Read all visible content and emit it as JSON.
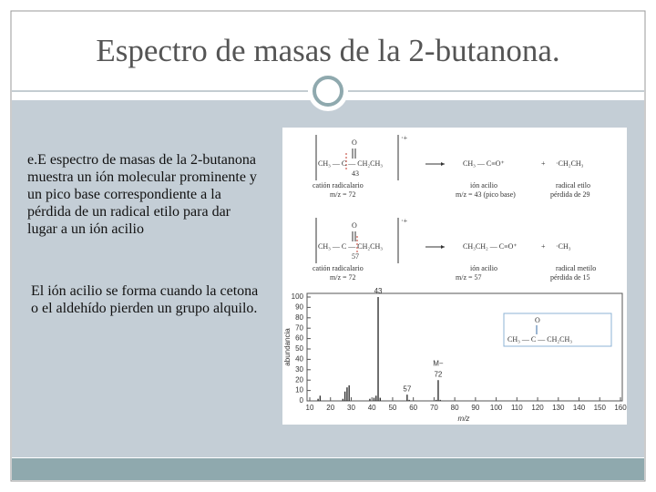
{
  "slide": {
    "title": "Espectro de masas de la 2-butanona.",
    "paragraphs": [
      "e.E espectro de masas de la 2-butanona muestra un ión molecular prominente y un pico base correspondiente a la pérdida de un radical etilo para dar lugar a un ión acilio",
      "El ión acilio se forma cuando la cetona o el aldehído pierden un grupo alquilo."
    ],
    "scheme": {
      "rows": [
        {
          "oxygen": "O",
          "reactant": "CH₃ — C — CH₂CH₃",
          "mass": "43",
          "charge": "·+",
          "product": "CH₃ — C≡O⁺",
          "plus": "+",
          "radical": "·CH₂CH₃",
          "reactant_name": "catión radicalario",
          "reactant_mz": "m/z = 72",
          "product_name": "ión acilio",
          "product_mz": "m/z = 43 (pico base)",
          "radical_name": "radical etilo",
          "radical_loss": "pérdida de 29"
        },
        {
          "oxygen": "O",
          "reactant": "CH₃ — C — CH₂CH₃",
          "mass": "57",
          "charge": "·+",
          "product": "CH₃CH₂ — C≡O⁺",
          "plus": "+",
          "radical": "·CH₃",
          "reactant_name": "catión radicalario",
          "reactant_mz": "m/z = 72",
          "product_name": "ión acilio",
          "product_mz": "m/z = 57",
          "radical_name": "radical metilo",
          "radical_loss": "pérdida de 15"
        }
      ]
    },
    "chart_data": {
      "type": "bar",
      "x_label": "m/z",
      "y_label": "abundancia",
      "x": [
        14,
        15,
        26,
        27,
        28,
        29,
        39,
        41,
        42,
        43,
        44,
        57,
        58,
        71,
        72,
        73
      ],
      "values": [
        2,
        5,
        2,
        9,
        13,
        15,
        2,
        3,
        5,
        100,
        3,
        6,
        1,
        1,
        20,
        1
      ],
      "color": "#333333",
      "xlim": [
        10,
        160
      ],
      "ylim": [
        0,
        100
      ],
      "xticks": [
        10,
        20,
        30,
        40,
        50,
        60,
        70,
        80,
        90,
        100,
        110,
        120,
        130,
        140,
        150,
        160
      ],
      "yticks": [
        0,
        10,
        20,
        30,
        40,
        50,
        60,
        70,
        80,
        90,
        100
      ],
      "annotations": [
        {
          "text": "43",
          "x": 43
        },
        {
          "text": "57",
          "x": 57
        },
        {
          "text": "72",
          "x": 72
        },
        {
          "text": "M−",
          "x": 72
        }
      ],
      "inset": {
        "oxygen": "O",
        "formula": "CH₃ — C — CH₂CH₃"
      }
    }
  }
}
